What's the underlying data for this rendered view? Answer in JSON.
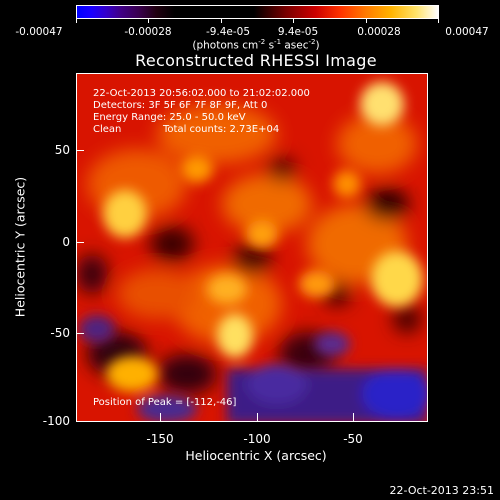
{
  "colorbar": {
    "labels": [
      "-0.00047",
      "-0.00028",
      "-9.4e-05",
      "9.4e-05",
      "0.00028",
      "0.00047"
    ],
    "units_prefix": "(photons cm",
    "units_exp1": "-2",
    "units_mid": " s",
    "units_exp2": "-1",
    "units_mid2": " asec",
    "units_exp3": "-2",
    "units_suffix": ")"
  },
  "title": "Reconstructed RHESSI Image",
  "info": {
    "line1": "22-Oct-2013 20:56:02.000 to 21:02:02.000",
    "line2": "Detectors: 3F 5F 6F 7F 8F 9F, Att 0",
    "line3": "Energy Range: 25.0 - 50.0 keV",
    "line4_left": "Clean",
    "line4_right": "Total counts: 2.73E+04",
    "peak": "Position of Peak = [-112,-46]"
  },
  "axes": {
    "xlabel": "Heliocentric X (arcsec)",
    "ylabel": "Heliocentric Y (arcsec)",
    "xticks": [
      "-150",
      "-100",
      "-50"
    ],
    "yticks": [
      "50",
      "0",
      "-50",
      "-100"
    ]
  },
  "timestamp": "22-Oct-2013 23:51"
}
